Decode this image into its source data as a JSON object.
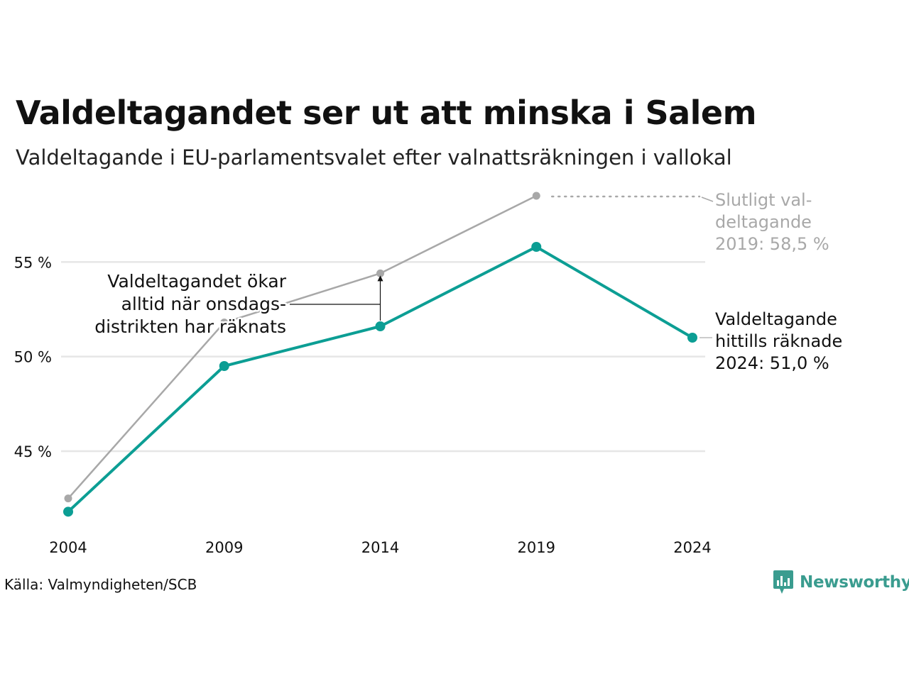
{
  "title": "Valdeltagandet ser ut att minska i Salem",
  "subtitle": "Valdeltagande i EU-parlamentsvalet efter valnattsräkningen i vallokal",
  "source": "Källa: Valmyndigheten/SCB",
  "brand": "Newsworthy",
  "colors": {
    "counted": "#0c9e94",
    "final": "#a8a8a8",
    "grid": "#e6e6e6",
    "text": "#111111"
  },
  "chart_data": {
    "type": "line",
    "x": [
      2004,
      2009,
      2014,
      2019,
      2024
    ],
    "xtick_labels": [
      "2004",
      "2009",
      "2014",
      "2019",
      "2024"
    ],
    "ylim": [
      40.5,
      58.8
    ],
    "yticks": [
      45,
      50,
      55
    ],
    "ytick_labels": [
      "45 %",
      "50 %",
      "55 %"
    ],
    "grid": true,
    "series": [
      {
        "key": "final",
        "values": [
          42.5,
          51.8,
          54.4,
          58.5,
          null
        ]
      },
      {
        "key": "counted",
        "values": [
          41.8,
          49.5,
          51.6,
          55.8,
          51.0
        ]
      }
    ],
    "annotations": {
      "final_label": [
        "Slutligt val-",
        "deltagande",
        "2019: 58,5 %"
      ],
      "counted_label": [
        "Valdeltagande",
        "hittills räknade",
        "2024: 51,0 %"
      ],
      "wednesday_note": [
        "Valdeltagandet ökar",
        "alltid när onsdags-",
        "distrikten har räknats"
      ]
    }
  }
}
